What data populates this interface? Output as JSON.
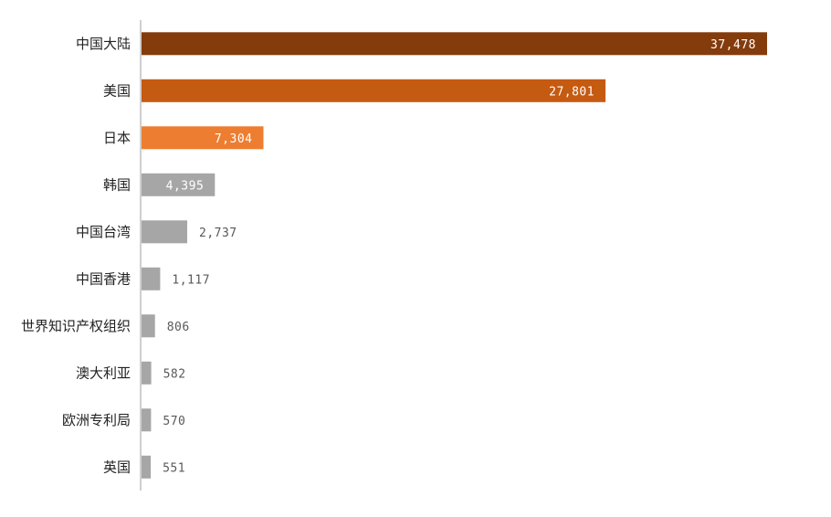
{
  "chart_data": {
    "type": "bar",
    "orientation": "horizontal",
    "categories": [
      "中国大陆",
      "美国",
      "日本",
      "韩国",
      "中国台湾",
      "中国香港",
      "世界知识产权组织",
      "澳大利亚",
      "欧洲专利局",
      "英国"
    ],
    "values": [
      37478,
      27801,
      7304,
      4395,
      2737,
      1117,
      806,
      582,
      570,
      551
    ],
    "value_labels": [
      "37,478",
      "27,801",
      "7,304",
      "4,395",
      "2,737",
      "1,117",
      "806",
      "582",
      "570",
      "551"
    ],
    "colors": [
      "#843C0C",
      "#C55A11",
      "#ED7D31",
      "#A6A6A6",
      "#A6A6A6",
      "#A6A6A6",
      "#A6A6A6",
      "#A6A6A6",
      "#A6A6A6",
      "#A6A6A6"
    ],
    "label_colors": {
      "inside": "#ffffff",
      "outside": "#595959"
    },
    "axis_color": "#BFBFBF",
    "grid": false,
    "legend": "none",
    "title": "",
    "xlabel": "",
    "ylabel": "",
    "xlim": [
      0,
      37478
    ]
  }
}
